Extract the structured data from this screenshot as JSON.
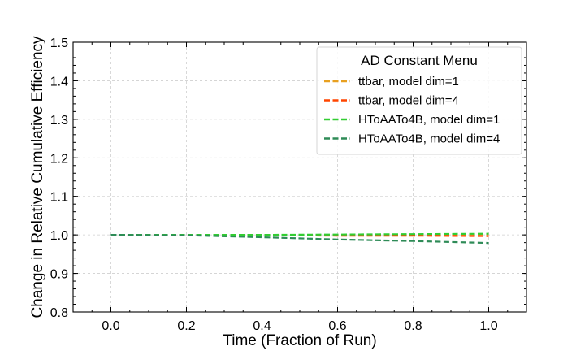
{
  "chart_data": {
    "type": "line",
    "title": "",
    "xlabel": "Time (Fraction of Run)",
    "ylabel": "Change in Relative Cumulative Efficiency",
    "xlim": [
      -0.1,
      1.1
    ],
    "ylim": [
      0.8,
      1.5
    ],
    "xticks": [
      0.0,
      0.2,
      0.4,
      0.6,
      0.8,
      1.0
    ],
    "xtick_labels": [
      "0.0",
      "0.2",
      "0.4",
      "0.6",
      "0.8",
      "1.0"
    ],
    "yticks": [
      0.8,
      0.9,
      1.0,
      1.1,
      1.2,
      1.3,
      1.4,
      1.5
    ],
    "ytick_labels": [
      "0.8",
      "0.9",
      "1.0",
      "1.1",
      "1.2",
      "1.3",
      "1.4",
      "1.5"
    ],
    "grid": true,
    "legend": {
      "title": "AD Constant Menu",
      "position": "top-right"
    },
    "x": [
      0.0,
      0.2,
      0.4,
      0.6,
      0.8,
      1.0
    ],
    "series": [
      {
        "name": "ttbar, model dim=1",
        "color": "#E8A020",
        "linestyle": "dashed",
        "values": [
          1.0,
          1.0,
          1.0,
          1.0,
          1.001,
          1.002
        ]
      },
      {
        "name": "ttbar, model dim=4",
        "color": "#FF4500",
        "linestyle": "dashed",
        "values": [
          1.0,
          1.0,
          0.999,
          0.998,
          0.998,
          0.997
        ]
      },
      {
        "name": "HToAATo4B, model dim=1",
        "color": "#32CD32",
        "linestyle": "dashed",
        "values": [
          1.0,
          1.0,
          1.0,
          1.001,
          1.002,
          1.003
        ]
      },
      {
        "name": "HToAATo4B, model dim=4",
        "color": "#2E8B57",
        "linestyle": "dashed",
        "values": [
          1.0,
          0.999,
          0.994,
          0.988,
          0.984,
          0.979
        ]
      }
    ]
  }
}
